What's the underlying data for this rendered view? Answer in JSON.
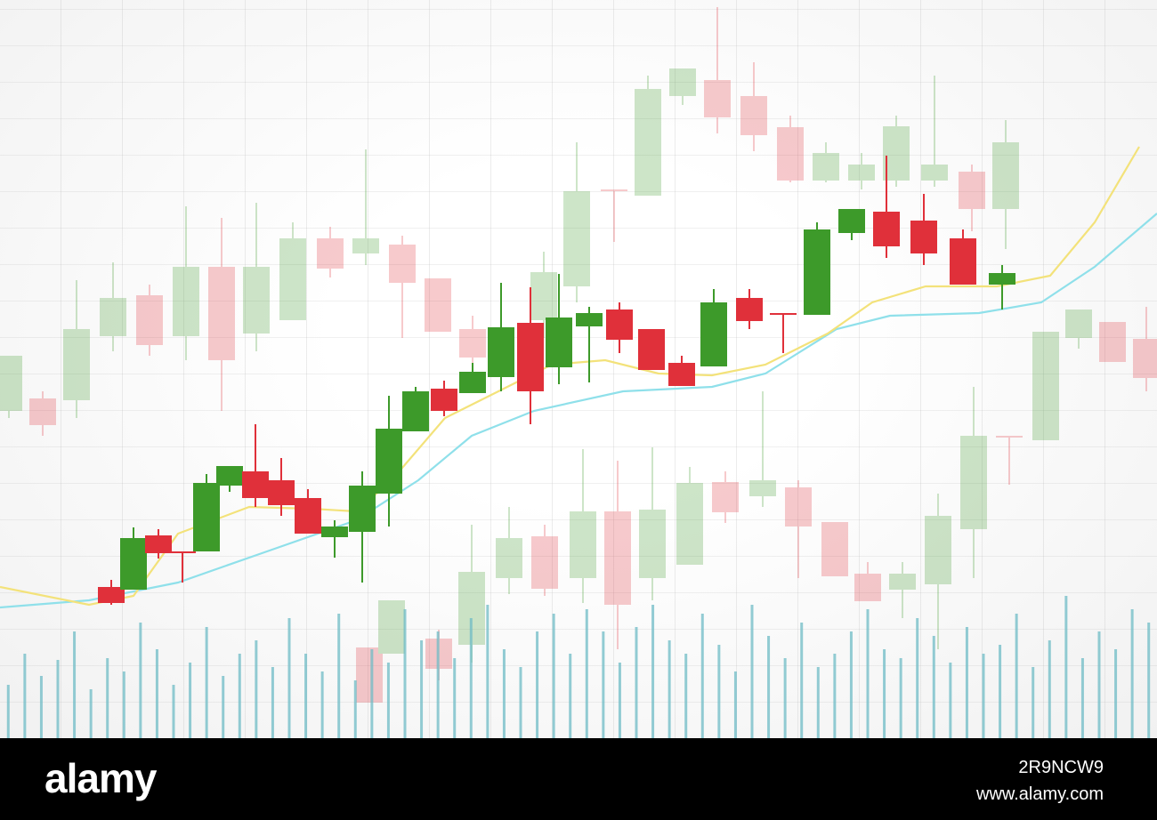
{
  "chart_data": [
    {
      "type": "candlestick",
      "opacity": 0.25,
      "up_color": "#3d9a2a",
      "down_color": "#e0303a",
      "xlim": [
        0,
        1300
      ],
      "ylim": [
        0,
        83
      ],
      "x": [
        10,
        48,
        86,
        127,
        168,
        209,
        249,
        288,
        329,
        371,
        411,
        452,
        492,
        531,
        611,
        648,
        690,
        728,
        767,
        806,
        847,
        888,
        928,
        968,
        1007,
        1050,
        1092,
        1130,
        1175,
        1212,
        1250,
        1288,
        415,
        440,
        493,
        530,
        572,
        612,
        655,
        694,
        733,
        775,
        815,
        857,
        897,
        938,
        975,
        1014,
        1054,
        1094,
        1134
      ],
      "open": [
        36.8,
        38.2,
        38,
        45.2,
        49.8,
        45.2,
        53,
        45.5,
        47,
        56.2,
        54.5,
        55.5,
        51.7,
        46,
        47,
        50.8,
        61.7,
        61,
        72.2,
        74,
        72.2,
        68.7,
        62.7,
        62.7,
        62.7,
        62.7,
        63.7,
        59.5,
        33.5,
        45,
        46.8,
        44.9,
        10.2,
        9.5,
        11.2,
        10.5,
        18,
        22.7,
        18,
        25.5,
        18,
        19.5,
        28.8,
        27.2,
        28.2,
        24.3,
        18.5,
        16.7,
        17.3,
        23.5,
        34
      ],
      "high": [
        43,
        39,
        51.5,
        53.5,
        51,
        59.8,
        58.5,
        60.2,
        58,
        57.5,
        66.2,
        56.5,
        51.7,
        47.5,
        54.7,
        67,
        61.7,
        74.5,
        75.3,
        82.2,
        76,
        70,
        67,
        65.8,
        70,
        74.5,
        64.5,
        69.5,
        45.7,
        48.2,
        46.8,
        48.5,
        10.2,
        15.5,
        12.2,
        24,
        26,
        24,
        32.5,
        31.2,
        32.7,
        30.5,
        30,
        39,
        29,
        24.3,
        19.8,
        19.8,
        27.5,
        39.5,
        34
      ],
      "low": [
        36,
        34,
        36,
        43.5,
        43,
        42.5,
        36.8,
        43.5,
        47,
        51.8,
        53.2,
        45,
        45.7,
        42,
        45,
        49,
        55.8,
        61,
        71.2,
        68,
        66,
        62.5,
        62.5,
        61.7,
        62,
        62,
        57,
        55,
        33.5,
        43.8,
        42.3,
        39,
        4,
        9.5,
        6.5,
        8.5,
        16.2,
        16,
        15.2,
        10,
        15.5,
        19.5,
        24.2,
        26,
        18,
        18.2,
        15.4,
        13.5,
        10,
        18,
        28.5
      ],
      "close": [
        43,
        35.2,
        46,
        49.5,
        44.2,
        53,
        42.5,
        53,
        56.2,
        52.8,
        56.2,
        51.2,
        45.7,
        42.8,
        52.4,
        61.5,
        61.5,
        73,
        75.3,
        69.8,
        67.8,
        62.7,
        65.8,
        64.5,
        68.8,
        64.5,
        59.5,
        67,
        45.7,
        48.2,
        42.3,
        40.5,
        4,
        15.5,
        7.8,
        18.7,
        22.5,
        16.8,
        25.5,
        15,
        25.7,
        28.7,
        25.4,
        29,
        23.8,
        18.2,
        15.4,
        18.5,
        25,
        34,
        33.8
      ]
    },
    {
      "type": "bar",
      "color": "#6fbcc6",
      "opacity": 0.75,
      "ylim": [
        0,
        160
      ],
      "values": [
        60,
        95,
        70,
        88,
        120,
        55,
        90,
        75,
        130,
        100,
        60,
        85,
        125,
        70,
        95,
        110,
        80,
        135,
        95,
        75,
        140,
        65,
        100,
        85,
        145,
        110,
        120,
        90,
        135,
        150,
        100,
        80,
        120,
        140,
        95,
        145,
        120,
        85,
        125,
        150,
        110,
        95,
        140,
        105,
        75,
        150,
        115,
        90,
        130,
        80,
        95,
        120,
        145,
        100,
        90,
        135,
        115,
        85,
        125,
        95,
        105,
        140,
        80,
        110,
        160,
        90,
        120,
        100,
        145,
        130
      ]
    },
    {
      "type": "line",
      "xlim": [
        0,
        1300
      ],
      "ylim": [
        0,
        83
      ],
      "series": [
        {
          "color": "#8fe0ea",
          "x": [
            0,
            100,
            200,
            300,
            400,
            470,
            530,
            600,
            700,
            800,
            860,
            940,
            1000,
            1100,
            1170,
            1230,
            1300
          ],
          "values": [
            14.7,
            15.5,
            17.5,
            21,
            24.5,
            29,
            34,
            36.8,
            39,
            39.5,
            41,
            46,
            47.5,
            47.8,
            49,
            53,
            59
          ]
        },
        {
          "color": "#f3e27a",
          "x": [
            0,
            100,
            150,
            200,
            280,
            350,
            400,
            440,
            500,
            560,
            620,
            680,
            740,
            800,
            860,
            930,
            980,
            1040,
            1120,
            1180,
            1230,
            1280
          ],
          "values": [
            17,
            15,
            16,
            23,
            26,
            25.8,
            25.5,
            29,
            36,
            39,
            42,
            42.5,
            41,
            40.8,
            42,
            45.5,
            49,
            50.8,
            50.8,
            52,
            58,
            66.5
          ]
        }
      ]
    },
    {
      "type": "candlestick",
      "opacity": 1,
      "up_color": "#3d9a2a",
      "down_color": "#e0303a",
      "xlim": [
        0,
        1300
      ],
      "ylim": [
        0,
        83
      ],
      "x": [
        125,
        150,
        178,
        205,
        232,
        258,
        287,
        316,
        346,
        376,
        407,
        437,
        467,
        499,
        531,
        563,
        596,
        628,
        662,
        696,
        732,
        766,
        802,
        842,
        880,
        918,
        957,
        996,
        1038,
        1082,
        1126
      ],
      "open": [
        17,
        16.7,
        22.8,
        21,
        21,
        28.4,
        30,
        29,
        27,
        22.6,
        23.2,
        27.5,
        34.5,
        39.3,
        38.8,
        40.6,
        46.7,
        41.7,
        46.3,
        48.2,
        46,
        42.2,
        41.8,
        49.5,
        47.8,
        47.6,
        56.8,
        59.2,
        58.2,
        56.2,
        51
      ],
      "high": [
        17.8,
        23.7,
        23.5,
        21,
        29.7,
        30.6,
        35.3,
        31.5,
        28,
        24.5,
        30,
        38.5,
        39.5,
        40.2,
        42.2,
        51.2,
        50.7,
        52.2,
        48.5,
        49,
        46,
        43,
        50.5,
        50.5,
        47.8,
        58,
        59.5,
        65.5,
        61.2,
        57.2,
        53.2
      ],
      "low": [
        15,
        16.7,
        20.2,
        17.5,
        21,
        27.7,
        26,
        25,
        23,
        20.3,
        17.5,
        23.8,
        34.5,
        36.2,
        38.8,
        39,
        35.3,
        39.8,
        40,
        43.3,
        41.4,
        39.6,
        41.8,
        46,
        43.3,
        47.6,
        56,
        54,
        53.2,
        51,
        48.2
      ],
      "close": [
        15.2,
        22.5,
        20.8,
        20.8,
        28.7,
        30.6,
        27,
        26.2,
        23,
        23.8,
        28.4,
        34.8,
        39,
        36.8,
        41.2,
        46.2,
        39,
        47.3,
        47.8,
        44.8,
        41.4,
        39.6,
        49,
        46.9,
        47.6,
        57.2,
        59.5,
        55.3,
        54.5,
        51,
        52.3
      ]
    }
  ],
  "footer": {
    "logo": "alamy",
    "image_id": "2R9NCW9",
    "url": "www.alamy.com"
  }
}
